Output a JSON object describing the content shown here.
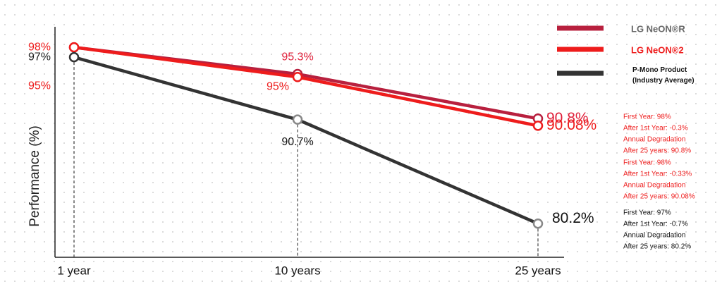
{
  "chart_data": {
    "type": "line",
    "y_label": "Performance (%)",
    "categories": [
      "1 year",
      "10 years",
      "25 years"
    ],
    "ylim": [
      76.8,
      100
    ],
    "yticks": [
      {
        "value": 98,
        "label": "98%"
      },
      {
        "value": 97,
        "label": "97%"
      },
      {
        "value": 95,
        "label": "95%"
      }
    ],
    "ytick_colors": [
      "#ee1c1c",
      "#222222",
      "#ee1c1c"
    ],
    "series": [
      {
        "name": "LG NeON®R",
        "color": "#b8203e",
        "values": [
          98,
          95.3,
          90.8
        ],
        "value_labels": [
          null,
          "95.3%",
          "90.8%"
        ]
      },
      {
        "name": "LG NeON®2",
        "color": "#ee1c1c",
        "values": [
          98,
          95,
          90.08
        ],
        "value_labels": [
          null,
          "95%",
          "90.08%"
        ]
      },
      {
        "name": "P-Mono Product (Industry Average)",
        "color": "#333333",
        "values": [
          97,
          90.7,
          80.2
        ],
        "value_labels": [
          null,
          "90.7%",
          "80.2%"
        ]
      }
    ],
    "annotations": [
      {
        "color": "#ee1c1c",
        "lines": [
          "First Year: 98%",
          "After 1st Year: -0.3%",
          "Annual Degradation",
          "After 25 years: 90.8%"
        ]
      },
      {
        "color": "#ee1c1c",
        "lines": [
          "First Year: 98%",
          "After 1st Year: -0.33%",
          "Annual Degradation",
          "After 25 years: 90.08%"
        ]
      },
      {
        "color": "#111111",
        "lines": [
          "First Year: 97%",
          "After 1st Year: -0.7%",
          "Annual Degradation",
          "After 25 years: 80.2%"
        ]
      }
    ]
  }
}
